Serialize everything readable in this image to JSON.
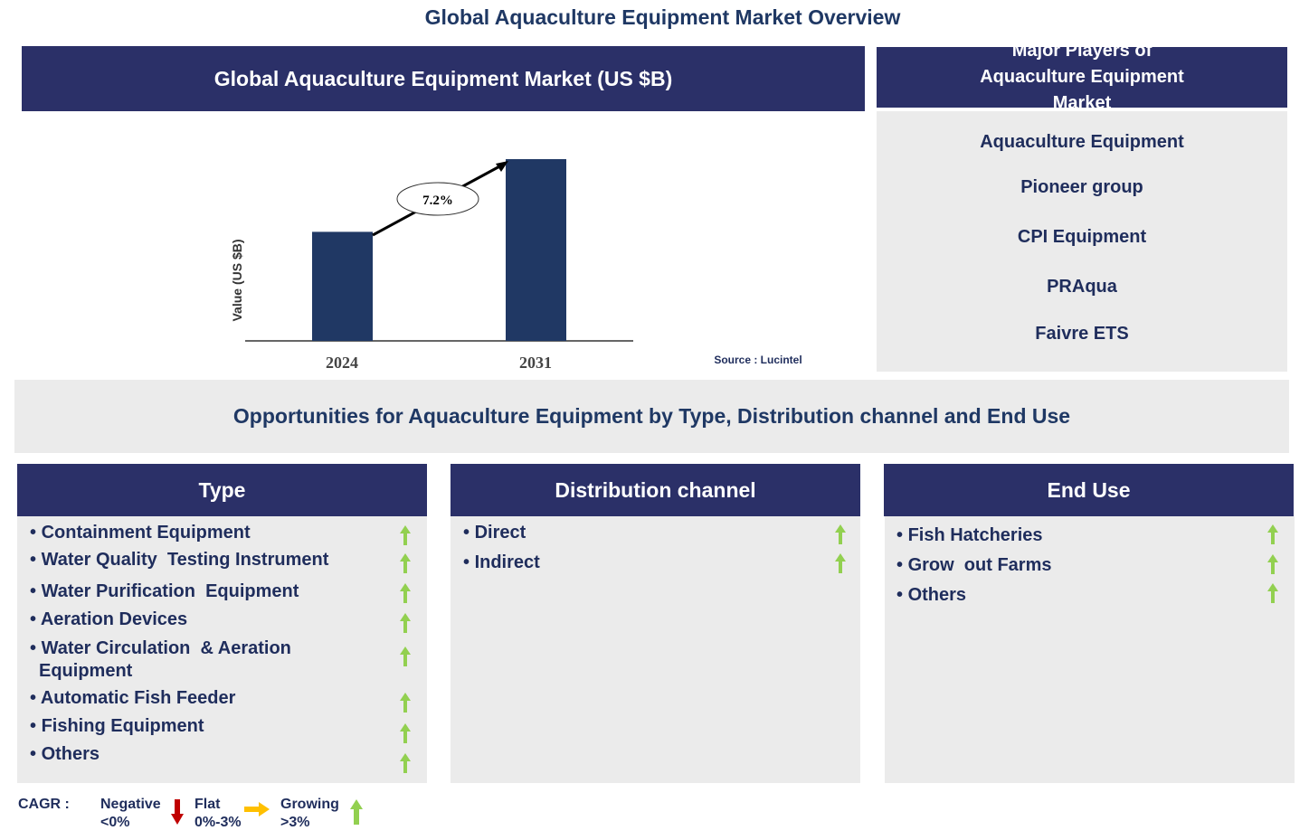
{
  "title": "Global Aquaculture Equipment Market Overview",
  "chart_header": "Global Aquaculture Equipment Market (US $B)",
  "players_header": "Major Players of Aquaculture Equipment Market",
  "players": [
    "Aquaculture Equipment",
    "Pioneer group",
    "CPI Equipment",
    "PRAqua",
    "Faivre ETS"
  ],
  "source": "Source : Lucintel",
  "opportunities_title": "Opportunities for Aquaculture Equipment by Type, Distribution channel and End Use",
  "segments": [
    {
      "header": "Type",
      "items": [
        "Containment Equipment",
        "Water Quality  Testing Instrument",
        "Water Purification  Equipment",
        "Aeration Devices",
        "Water Circulation  & Aeration Equipment",
        "Automatic Fish Feeder",
        "Fishing Equipment",
        "Others"
      ],
      "trend": "growing"
    },
    {
      "header": "Distribution channel",
      "items": [
        "Direct",
        "Indirect"
      ],
      "trend": "growing"
    },
    {
      "header": "End Use",
      "items": [
        "Fish Hatcheries",
        "Grow  out Farms",
        "Others"
      ],
      "trend": "growing"
    }
  ],
  "legend": {
    "label": "CAGR  :",
    "negative": "Negative",
    "negative_range": "<0%",
    "flat": "Flat",
    "flat_range": "0%-3%",
    "growing": "Growing",
    "growing_range": ">3%"
  },
  "colors": {
    "header": "#2b3068",
    "bar": "#203864",
    "growing": "#92d050",
    "flat": "#ffc000",
    "negative": "#c00000"
  },
  "chart_data": {
    "type": "bar",
    "categories": [
      "2024",
      "2031"
    ],
    "relative_values": [
      0.6,
      1.0
    ],
    "ylabel": "Value (US $B)",
    "annotation": "7.2%",
    "grid": false
  }
}
